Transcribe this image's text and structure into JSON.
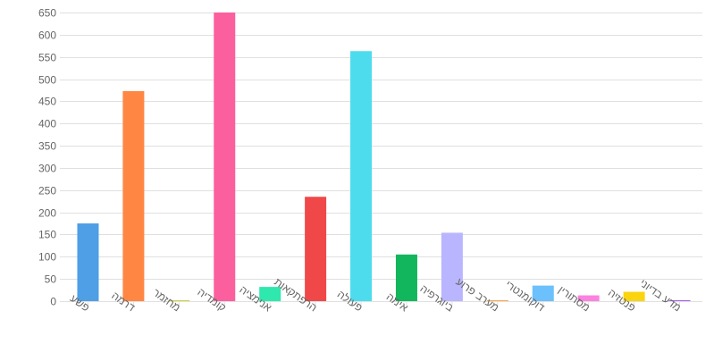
{
  "chart_data": {
    "type": "bar",
    "title": "",
    "xlabel": "",
    "ylabel": "",
    "categories": [
      "פשע",
      "דרמה",
      "מחזמר",
      "קומדיה",
      "אנימציה",
      "הרפתקאות",
      "פעולה",
      "אימה",
      "ביוגרפיה",
      "מערב פרוע",
      "דוקומנטרי",
      "מסתורין",
      "פנטזיה",
      "מדע בדיוני"
    ],
    "values": [
      175,
      473,
      2,
      650,
      32,
      235,
      563,
      105,
      154,
      2,
      35,
      13,
      21,
      2
    ],
    "colors": [
      "#4e9fe6",
      "#ff8743",
      "#cfd33c",
      "#fc5f9d",
      "#2ee8ad",
      "#f04848",
      "#4cdcee",
      "#12b65d",
      "#b9b6ff",
      "#ffa845",
      "#6cc0fc",
      "#fc82e0",
      "#fad40e",
      "#a75df0"
    ],
    "yticks": [
      0,
      50,
      100,
      150,
      200,
      250,
      300,
      350,
      400,
      450,
      500,
      550,
      600,
      650
    ],
    "ylim": [
      0,
      650
    ],
    "grid": true,
    "legend": "none"
  }
}
